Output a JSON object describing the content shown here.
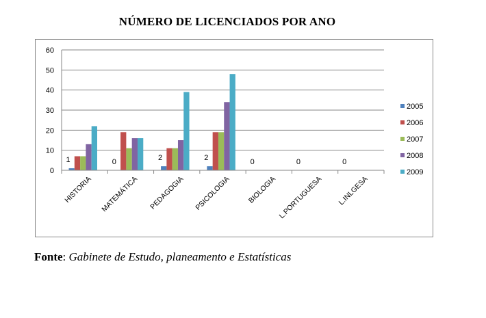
{
  "title": "NÚMERO DE LICENCIADOS POR ANO",
  "source": {
    "label": "Fonte",
    "text": "Gabinete de Estudo, planeamento e Estatísticas"
  },
  "colors": {
    "2005": "#4F81BD",
    "2006": "#C0504D",
    "2007": "#9BBB59",
    "2008": "#8064A2",
    "2009": "#4BACC6"
  },
  "chart_data": {
    "type": "bar",
    "title": "NÚMERO DE LICENCIADOS POR ANO",
    "xlabel": "",
    "ylabel": "",
    "ylim": [
      0,
      60
    ],
    "yticks": [
      0,
      10,
      20,
      30,
      40,
      50,
      60
    ],
    "grid": true,
    "legend": "right",
    "categories": [
      "HISTORIA",
      "MATEMÁTICA",
      "PEDAGOGIA",
      "PSICOLOGIA",
      "BIOLOGIA",
      "L.PORTUGUESA",
      "L.INLGESA"
    ],
    "series": [
      {
        "name": "2005",
        "values": [
          1,
          0,
          2,
          2,
          0,
          0,
          0
        ]
      },
      {
        "name": "2006",
        "values": [
          7,
          19,
          11,
          19,
          0,
          0,
          0
        ]
      },
      {
        "name": "2007",
        "values": [
          7,
          11,
          11,
          19,
          0,
          0,
          0
        ]
      },
      {
        "name": "2008",
        "values": [
          13,
          16,
          15,
          34,
          0,
          0,
          0
        ]
      },
      {
        "name": "2009",
        "values": [
          22,
          16,
          39,
          48,
          0,
          0,
          0
        ]
      }
    ],
    "data_labels": [
      {
        "category": "HISTORIA",
        "series": "2005",
        "text": "1"
      },
      {
        "category": "MATEMÁTICA",
        "series": "2005",
        "text": "0"
      },
      {
        "category": "PEDAGOGIA",
        "series": "2005",
        "text": "2"
      },
      {
        "category": "PSICOLOGIA",
        "series": "2005",
        "text": "2"
      },
      {
        "category": "BIOLOGIA",
        "series": "2005",
        "text": "0"
      },
      {
        "category": "L.PORTUGUESA",
        "series": "2005",
        "text": "0"
      },
      {
        "category": "L.INLGESA",
        "series": "2005",
        "text": "0"
      }
    ]
  }
}
